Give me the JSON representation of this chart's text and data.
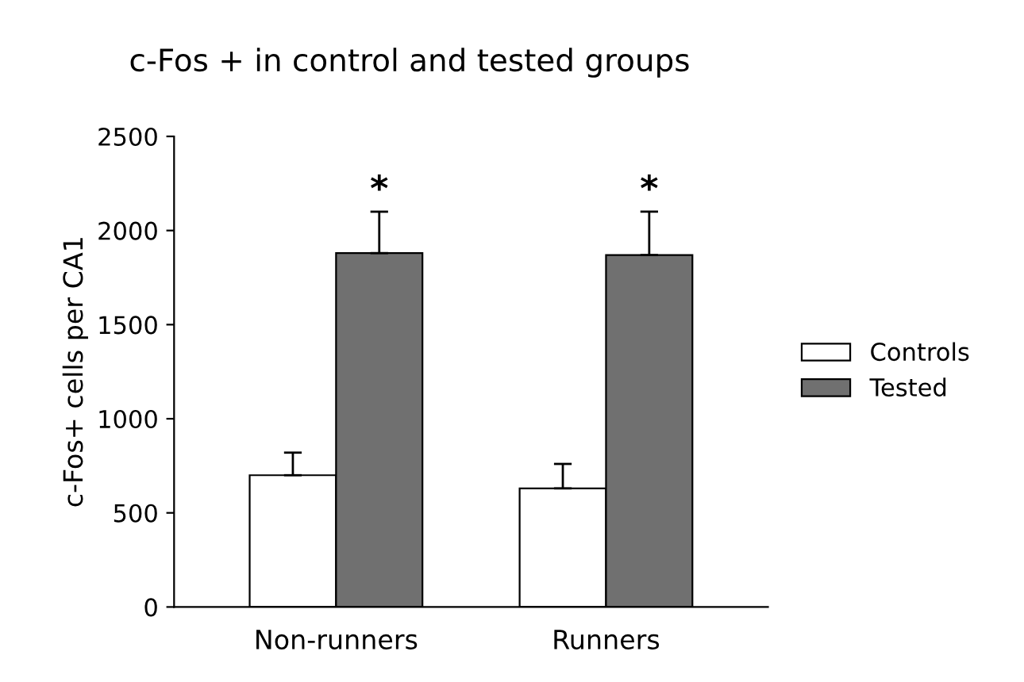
{
  "chart_data": {
    "type": "bar",
    "title": "c-Fos + in control and tested groups",
    "ylabel": "c-Fos+ cells per CA1",
    "categories": [
      "Non-runners",
      "Runners"
    ],
    "series": [
      {
        "name": "Controls",
        "color": "#ffffff",
        "values": [
          700,
          630
        ],
        "errors": [
          [
            700,
            820
          ],
          [
            630,
            760
          ]
        ]
      },
      {
        "name": "Tested",
        "color": "#707070",
        "values": [
          1880,
          1870
        ],
        "errors": [
          [
            1880,
            2100
          ],
          [
            1870,
            2100
          ]
        ]
      }
    ],
    "ylim": [
      0,
      2500
    ],
    "yticks": [
      0,
      500,
      1000,
      1500,
      2000,
      2500
    ],
    "grid": false,
    "legend": "right",
    "annotations": [
      "*",
      "*"
    ]
  }
}
